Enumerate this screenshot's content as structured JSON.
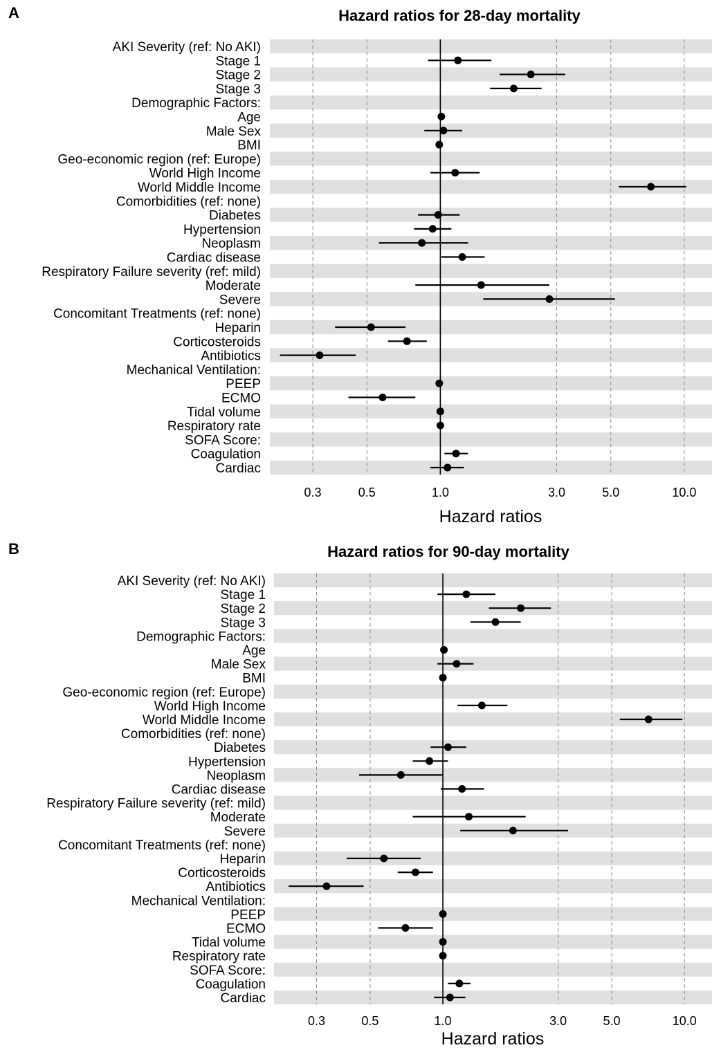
{
  "chart_data": [
    {
      "panel": "A",
      "type": "scatter",
      "title": "Hazard ratios for 28-day mortality",
      "xlabel": "Hazard ratios",
      "x_scale": "log",
      "xlim": [
        0.2,
        13
      ],
      "x_ticks": [
        0.3,
        0.5,
        1.0,
        3.0,
        5.0,
        10.0
      ],
      "x_tick_labels": [
        "0.3",
        "0.5",
        "1.0",
        "3.0",
        "5.0",
        "10.0"
      ],
      "reference_line": 1.0,
      "rows": [
        {
          "label": "AKI Severity (ref: No AKI)",
          "hr": null,
          "lo": null,
          "hi": null
        },
        {
          "label": "Stage 1",
          "hr": 1.18,
          "lo": 0.89,
          "hi": 1.62
        },
        {
          "label": "Stage 2",
          "hr": 2.35,
          "lo": 1.75,
          "hi": 3.25
        },
        {
          "label": "Stage 3",
          "hr": 2.0,
          "lo": 1.6,
          "hi": 2.6
        },
        {
          "label": "Demographic Factors:",
          "hr": null,
          "lo": null,
          "hi": null
        },
        {
          "label": "Age",
          "hr": 1.01,
          "lo": 1.0,
          "hi": 1.02
        },
        {
          "label": "Male Sex",
          "hr": 1.03,
          "lo": 0.86,
          "hi": 1.23
        },
        {
          "label": "BMI",
          "hr": 0.99,
          "lo": 0.98,
          "hi": 1.0
        },
        {
          "label": "Geo-economic region (ref: Europe)",
          "hr": null,
          "lo": null,
          "hi": null
        },
        {
          "label": "World High Income",
          "hr": 1.15,
          "lo": 0.91,
          "hi": 1.45
        },
        {
          "label": "World Middle Income",
          "hr": 7.3,
          "lo": 5.4,
          "hi": 10.2
        },
        {
          "label": "Comorbidities (ref: none)",
          "hr": null,
          "lo": null,
          "hi": null
        },
        {
          "label": "Diabetes",
          "hr": 0.98,
          "lo": 0.81,
          "hi": 1.2
        },
        {
          "label": "Hypertension",
          "hr": 0.93,
          "lo": 0.78,
          "hi": 1.11
        },
        {
          "label": "Neoplasm",
          "hr": 0.84,
          "lo": 0.56,
          "hi": 1.3
        },
        {
          "label": "Cardiac disease",
          "hr": 1.23,
          "lo": 1.01,
          "hi": 1.52
        },
        {
          "label": "Respiratory Failure severity (ref: mild)",
          "hr": null,
          "lo": null,
          "hi": null
        },
        {
          "label": "Moderate",
          "hr": 1.47,
          "lo": 0.79,
          "hi": 2.8
        },
        {
          "label": "Severe",
          "hr": 2.8,
          "lo": 1.5,
          "hi": 5.2
        },
        {
          "label": "Concomitant Treatments (ref: none)",
          "hr": null,
          "lo": null,
          "hi": null
        },
        {
          "label": "Heparin",
          "hr": 0.52,
          "lo": 0.37,
          "hi": 0.72
        },
        {
          "label": "Corticosteroids",
          "hr": 0.73,
          "lo": 0.61,
          "hi": 0.88
        },
        {
          "label": "Antibiotics",
          "hr": 0.32,
          "lo": 0.22,
          "hi": 0.45
        },
        {
          "label": "Mechanical Ventilation:",
          "hr": null,
          "lo": null,
          "hi": null
        },
        {
          "label": "PEEP",
          "hr": 0.99,
          "lo": 0.98,
          "hi": 1.0
        },
        {
          "label": "ECMO",
          "hr": 0.58,
          "lo": 0.42,
          "hi": 0.79
        },
        {
          "label": "Tidal volume",
          "hr": 1.0,
          "lo": 0.99,
          "hi": 1.01
        },
        {
          "label": "Respiratory rate",
          "hr": 1.0,
          "lo": 0.99,
          "hi": 1.01
        },
        {
          "label": "SOFA Score:",
          "hr": null,
          "lo": null,
          "hi": null
        },
        {
          "label": "Coagulation",
          "hr": 1.16,
          "lo": 1.04,
          "hi": 1.3
        },
        {
          "label": "Cardiac",
          "hr": 1.07,
          "lo": 0.91,
          "hi": 1.25
        }
      ]
    },
    {
      "panel": "B",
      "type": "scatter",
      "title": "Hazard ratios for 90-day mortality",
      "xlabel": "Hazard ratios",
      "x_scale": "log",
      "xlim": [
        0.2,
        13
      ],
      "x_ticks": [
        0.3,
        0.5,
        1.0,
        3.0,
        5.0,
        10.0
      ],
      "x_tick_labels": [
        "0.3",
        "0.5",
        "1.0",
        "3.0",
        "5.0",
        "10.0"
      ],
      "reference_line": 1.0,
      "rows": [
        {
          "label": "AKI Severity (ref: No AKI)",
          "hr": null,
          "lo": null,
          "hi": null
        },
        {
          "label": "Stage 1",
          "hr": 1.25,
          "lo": 0.95,
          "hi": 1.65
        },
        {
          "label": "Stage 2",
          "hr": 2.1,
          "lo": 1.55,
          "hi": 2.8
        },
        {
          "label": "Stage 3",
          "hr": 1.65,
          "lo": 1.3,
          "hi": 2.1
        },
        {
          "label": "Demographic Factors:",
          "hr": null,
          "lo": null,
          "hi": null
        },
        {
          "label": "Age",
          "hr": 1.01,
          "lo": 1.0,
          "hi": 1.02
        },
        {
          "label": "Male Sex",
          "hr": 1.14,
          "lo": 0.95,
          "hi": 1.34
        },
        {
          "label": "BMI",
          "hr": 1.0,
          "lo": 0.99,
          "hi": 1.01
        },
        {
          "label": "Geo-economic region (ref: Europe)",
          "hr": null,
          "lo": null,
          "hi": null
        },
        {
          "label": "World High Income",
          "hr": 1.45,
          "lo": 1.15,
          "hi": 1.85
        },
        {
          "label": "World Middle Income",
          "hr": 7.1,
          "lo": 5.4,
          "hi": 9.8
        },
        {
          "label": "Comorbidities (ref: none)",
          "hr": null,
          "lo": null,
          "hi": null
        },
        {
          "label": "Diabetes",
          "hr": 1.05,
          "lo": 0.89,
          "hi": 1.25
        },
        {
          "label": "Hypertension",
          "hr": 0.88,
          "lo": 0.75,
          "hi": 1.05
        },
        {
          "label": "Neoplasm",
          "hr": 0.67,
          "lo": 0.45,
          "hi": 1.0
        },
        {
          "label": "Cardiac disease",
          "hr": 1.2,
          "lo": 0.98,
          "hi": 1.48
        },
        {
          "label": "Respiratory Failure severity (ref: mild)",
          "hr": null,
          "lo": null,
          "hi": null
        },
        {
          "label": "Moderate",
          "hr": 1.28,
          "lo": 0.75,
          "hi": 2.2
        },
        {
          "label": "Severe",
          "hr": 1.95,
          "lo": 1.18,
          "hi": 3.3
        },
        {
          "label": "Concomitant Treatments (ref: none)",
          "hr": null,
          "lo": null,
          "hi": null
        },
        {
          "label": "Heparin",
          "hr": 0.57,
          "lo": 0.4,
          "hi": 0.81
        },
        {
          "label": "Corticosteroids",
          "hr": 0.77,
          "lo": 0.65,
          "hi": 0.91
        },
        {
          "label": "Antibiotics",
          "hr": 0.33,
          "lo": 0.23,
          "hi": 0.47
        },
        {
          "label": "Mechanical Ventilation:",
          "hr": null,
          "lo": null,
          "hi": null
        },
        {
          "label": "PEEP",
          "hr": 1.0,
          "lo": 0.99,
          "hi": 1.01
        },
        {
          "label": "ECMO",
          "hr": 0.7,
          "lo": 0.54,
          "hi": 0.91
        },
        {
          "label": "Tidal volume",
          "hr": 1.0,
          "lo": 0.99,
          "hi": 1.01
        },
        {
          "label": "Respiratory rate",
          "hr": 1.0,
          "lo": 0.99,
          "hi": 1.01
        },
        {
          "label": "SOFA Score:",
          "hr": null,
          "lo": null,
          "hi": null
        },
        {
          "label": "Coagulation",
          "hr": 1.17,
          "lo": 1.05,
          "hi": 1.3
        },
        {
          "label": "Cardiac",
          "hr": 1.07,
          "lo": 0.92,
          "hi": 1.24
        }
      ]
    }
  ],
  "colors": {
    "band": "#e0e0e0",
    "grid": "#888888",
    "mark": "#000000"
  }
}
